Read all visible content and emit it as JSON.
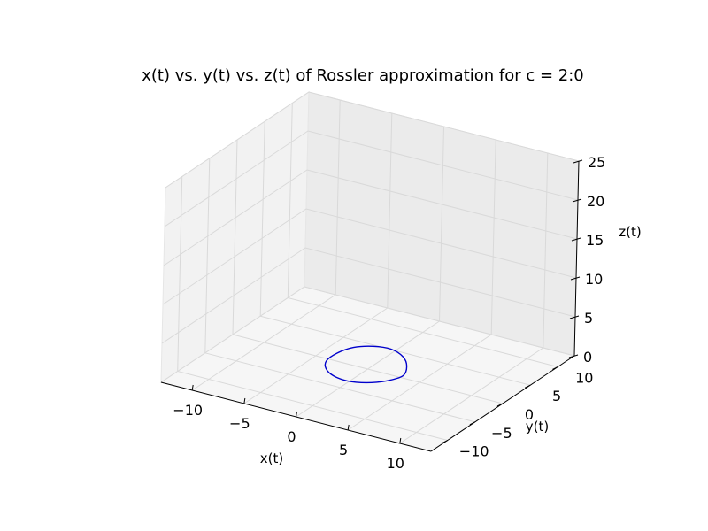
{
  "chart_data": {
    "type": "line3d",
    "title": "x(t) vs. y(t) vs. z(t) of Rossler approximation for c = 2:0",
    "xlabel": "x(t)",
    "ylabel": "y(t)",
    "zlabel": "z(t)",
    "xlim": [
      -13,
      13
    ],
    "ylim": [
      -13,
      13
    ],
    "zlim": [
      0,
      25
    ],
    "xticks": [
      {
        "v": -10,
        "label": "−10"
      },
      {
        "v": -5,
        "label": "−5"
      },
      {
        "v": 0,
        "label": "0"
      },
      {
        "v": 5,
        "label": "5"
      },
      {
        "v": 10,
        "label": "10"
      }
    ],
    "yticks": [
      {
        "v": -10,
        "label": "−10"
      },
      {
        "v": -5,
        "label": "−5"
      },
      {
        "v": 0,
        "label": "0"
      },
      {
        "v": 5,
        "label": "5"
      },
      {
        "v": 10,
        "label": "10"
      }
    ],
    "zticks": [
      {
        "v": 0,
        "label": "0"
      },
      {
        "v": 5,
        "label": "5"
      },
      {
        "v": 10,
        "label": "10"
      },
      {
        "v": 15,
        "label": "15"
      },
      {
        "v": 20,
        "label": "20"
      },
      {
        "v": 25,
        "label": "25"
      }
    ],
    "grid": true,
    "series": [
      {
        "color": "#0000cc",
        "x": [
          3.4,
          2.9,
          1.9,
          0.4,
          -1.2,
          -2.6,
          -3.4,
          -3.5,
          -2.8,
          -1.6,
          -0.1,
          1.4,
          2.7,
          3.4
        ],
        "y": [
          0.0,
          1.6,
          2.8,
          3.4,
          3.2,
          2.3,
          0.8,
          -0.9,
          -2.3,
          -3.2,
          -3.5,
          -2.9,
          -1.7,
          0.0
        ],
        "z": [
          0.3,
          0.6,
          0.9,
          1.1,
          1.0,
          0.8,
          0.5,
          0.3,
          0.2,
          0.1,
          0.1,
          0.1,
          0.2,
          0.3
        ]
      }
    ]
  }
}
